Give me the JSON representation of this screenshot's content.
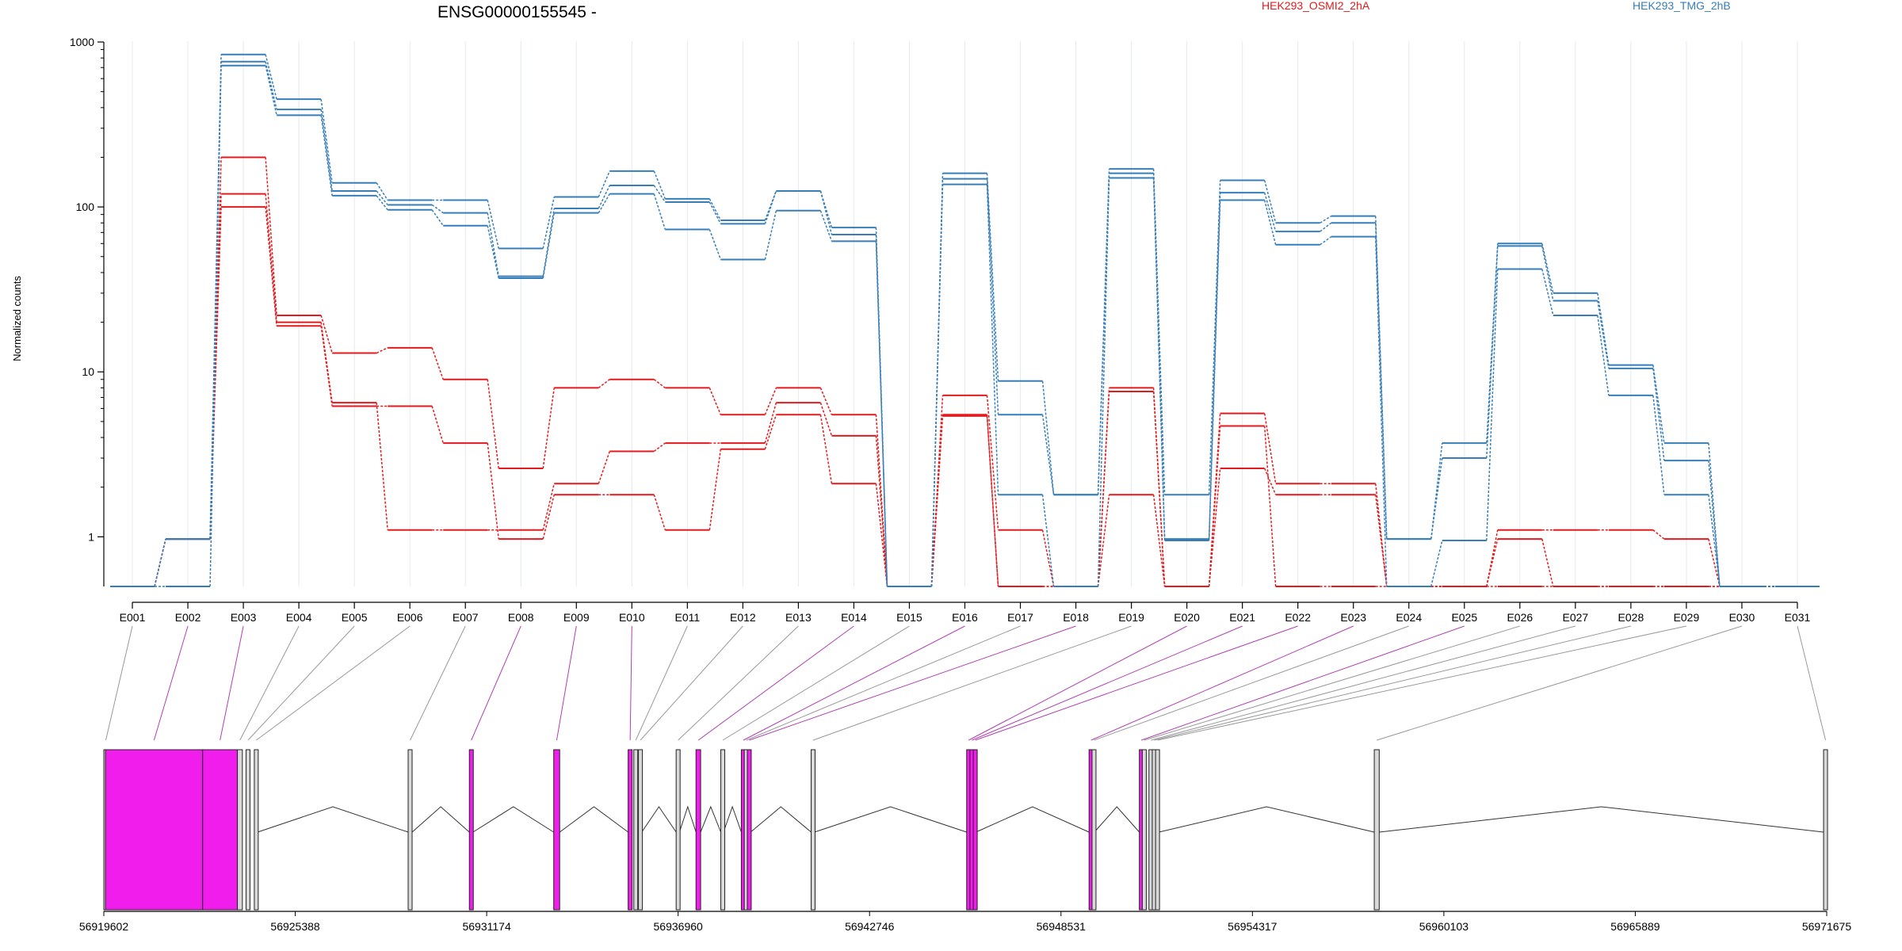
{
  "chart_data": {
    "type": "line",
    "title": "ENSG00000155545 -",
    "ylabel": "Normalized counts",
    "xlabel": "",
    "yscale": "log",
    "ylim": [
      0.5,
      1000
    ],
    "yticks": [
      "1",
      "10",
      "100",
      "1000"
    ],
    "grid": "vertical-per-exon",
    "legend": "top-right",
    "categories": [
      "E001",
      "E002",
      "E003",
      "E004",
      "E005",
      "E006",
      "E007",
      "E008",
      "E009",
      "E010",
      "E011",
      "E012",
      "E013",
      "E014",
      "E015",
      "E016",
      "E017",
      "E018",
      "E019",
      "E020",
      "E021",
      "E022",
      "E023",
      "E024",
      "E025",
      "E026",
      "E027",
      "E028",
      "E029",
      "E030",
      "E031"
    ],
    "colors": {
      "HEK293_OSMI2_2hA": "#e41a1c",
      "HEK293_TMG_2hB": "#377eb8"
    },
    "series": [
      {
        "name": "HEK293_OSMI2_2hA",
        "group": "HEK293_OSMI2_2hA",
        "values": [
          0.5,
          0.97,
          200,
          22,
          13,
          14,
          9,
          2.6,
          8,
          9,
          8,
          5.5,
          8,
          5.5,
          0.5,
          7.2,
          1.1,
          0.5,
          8,
          0.5,
          5.6,
          2.1,
          2.1,
          0.5,
          0.5,
          1.1,
          1.1,
          1.1,
          0.97,
          0.5,
          0.5
        ]
      },
      {
        "name": "HEK293_OSMI2_2hA",
        "group": "HEK293_OSMI2_2hA",
        "values": [
          0.5,
          0.97,
          120,
          20,
          6.5,
          1.1,
          1.1,
          1.1,
          2.1,
          3.3,
          3.7,
          3.7,
          6.5,
          4.1,
          0.5,
          5.5,
          0.5,
          0.5,
          7.6,
          0.5,
          4.7,
          0.5,
          0.5,
          0.5,
          0.5,
          0.97,
          0.5,
          0.5,
          0.5,
          0.5,
          0.5
        ]
      },
      {
        "name": "HEK293_OSMI2_2hA",
        "group": "HEK293_OSMI2_2hA",
        "values": [
          0.5,
          0.97,
          100,
          19,
          6.2,
          6.2,
          3.7,
          0.97,
          1.8,
          1.8,
          1.1,
          3.4,
          5.5,
          2.1,
          0.5,
          5.4,
          0.5,
          0.5,
          1.8,
          0.5,
          2.6,
          1.8,
          1.8,
          0.5,
          0.5,
          0.5,
          0.5,
          0.5,
          0.5,
          0.5,
          0.5
        ]
      },
      {
        "name": "HEK293_TMG_2hB",
        "group": "HEK293_TMG_2hB",
        "values": [
          0.5,
          0.97,
          840,
          450,
          140,
          110,
          110,
          56,
          115,
          165,
          112,
          83,
          125,
          75,
          0.5,
          160,
          8.8,
          1.8,
          170,
          1.8,
          145,
          80,
          88,
          0.97,
          3.7,
          60,
          30,
          11,
          3.7,
          0.5,
          0.5
        ]
      },
      {
        "name": "HEK293_TMG_2hB",
        "group": "HEK293_TMG_2hB",
        "values": [
          0.5,
          0.97,
          760,
          390,
          125,
          103,
          92,
          38,
          98,
          135,
          107,
          79,
          125,
          68,
          0.5,
          148,
          5.5,
          1.8,
          160,
          0.97,
          122,
          71,
          80,
          0.97,
          3.0,
          58,
          27,
          10.5,
          2.9,
          0.5,
          0.5
        ]
      },
      {
        "name": "HEK293_TMG_2hB",
        "group": "HEK293_TMG_2hB",
        "values": [
          0.5,
          0.5,
          720,
          360,
          117,
          96,
          77,
          37,
          92,
          120,
          73,
          48,
          95,
          62,
          0.5,
          137,
          1.8,
          0.5,
          150,
          0.95,
          110,
          59,
          66,
          0.5,
          0.95,
          42,
          22,
          7.2,
          1.8,
          0.5,
          0.5
        ]
      }
    ],
    "gene_model": {
      "coordinate_ticks": [
        "56919602",
        "56925388",
        "56931174",
        "56936960",
        "56942746",
        "56948531",
        "56954317",
        "56960103",
        "56965889",
        "56971675"
      ],
      "range": [
        56919602,
        56971675
      ],
      "highlight_color": "#f01ded",
      "exons": [
        {
          "id": "E001",
          "start": 56919602,
          "end": 56919650,
          "hl": false
        },
        {
          "id": "E002",
          "start": 56919650,
          "end": 56922590,
          "hl": true
        },
        {
          "id": "E003",
          "start": 56922590,
          "end": 56923640,
          "hl": true
        },
        {
          "id": "E004",
          "start": 56923640,
          "end": 56923790,
          "hl": false
        },
        {
          "id": "E005",
          "start": 56923900,
          "end": 56924010,
          "hl": false
        },
        {
          "id": "E006",
          "start": 56924150,
          "end": 56924250,
          "hl": false
        },
        {
          "id": "E007",
          "start": 56928800,
          "end": 56928920,
          "hl": false
        },
        {
          "id": "E008",
          "start": 56930650,
          "end": 56930760,
          "hl": true
        },
        {
          "id": "E009",
          "start": 56933200,
          "end": 56933380,
          "hl": true
        },
        {
          "id": "E010",
          "start": 56935450,
          "end": 56935570,
          "hl": true
        },
        {
          "id": "E011",
          "start": 56935620,
          "end": 56935710,
          "hl": false
        },
        {
          "id": "E012",
          "start": 56935760,
          "end": 56935860,
          "hl": false
        },
        {
          "id": "E013",
          "start": 56936900,
          "end": 56937000,
          "hl": false
        },
        {
          "id": "E014",
          "start": 56937500,
          "end": 56937640,
          "hl": true
        },
        {
          "id": "E015",
          "start": 56938250,
          "end": 56938330,
          "hl": false
        },
        {
          "id": "E016",
          "start": 56938870,
          "end": 56938960,
          "hl": true
        },
        {
          "id": "E017",
          "start": 56938960,
          "end": 56939050,
          "hl": false
        },
        {
          "id": "E018",
          "start": 56939050,
          "end": 56939150,
          "hl": true
        },
        {
          "id": "E019",
          "start": 56940980,
          "end": 56941080,
          "hl": false
        },
        {
          "id": "E020",
          "start": 56945680,
          "end": 56945780,
          "hl": true
        },
        {
          "id": "E021",
          "start": 56945780,
          "end": 56945880,
          "hl": true
        },
        {
          "id": "E022",
          "start": 56945880,
          "end": 56945960,
          "hl": true
        },
        {
          "id": "E023",
          "start": 56949380,
          "end": 56949470,
          "hl": true
        },
        {
          "id": "E024",
          "start": 56949470,
          "end": 56949540,
          "hl": false
        },
        {
          "id": "E025",
          "start": 56950900,
          "end": 56950990,
          "hl": true
        },
        {
          "id": "E026",
          "start": 56950990,
          "end": 56951090,
          "hl": false
        },
        {
          "id": "E027",
          "start": 56951190,
          "end": 56951290,
          "hl": false
        },
        {
          "id": "E028",
          "start": 56951290,
          "end": 56951390,
          "hl": false
        },
        {
          "id": "E029",
          "start": 56951390,
          "end": 56951490,
          "hl": false
        },
        {
          "id": "E030",
          "start": 56958000,
          "end": 56958150,
          "hl": false
        },
        {
          "id": "E031",
          "start": 56971580,
          "end": 56971675,
          "hl": false
        }
      ]
    }
  }
}
